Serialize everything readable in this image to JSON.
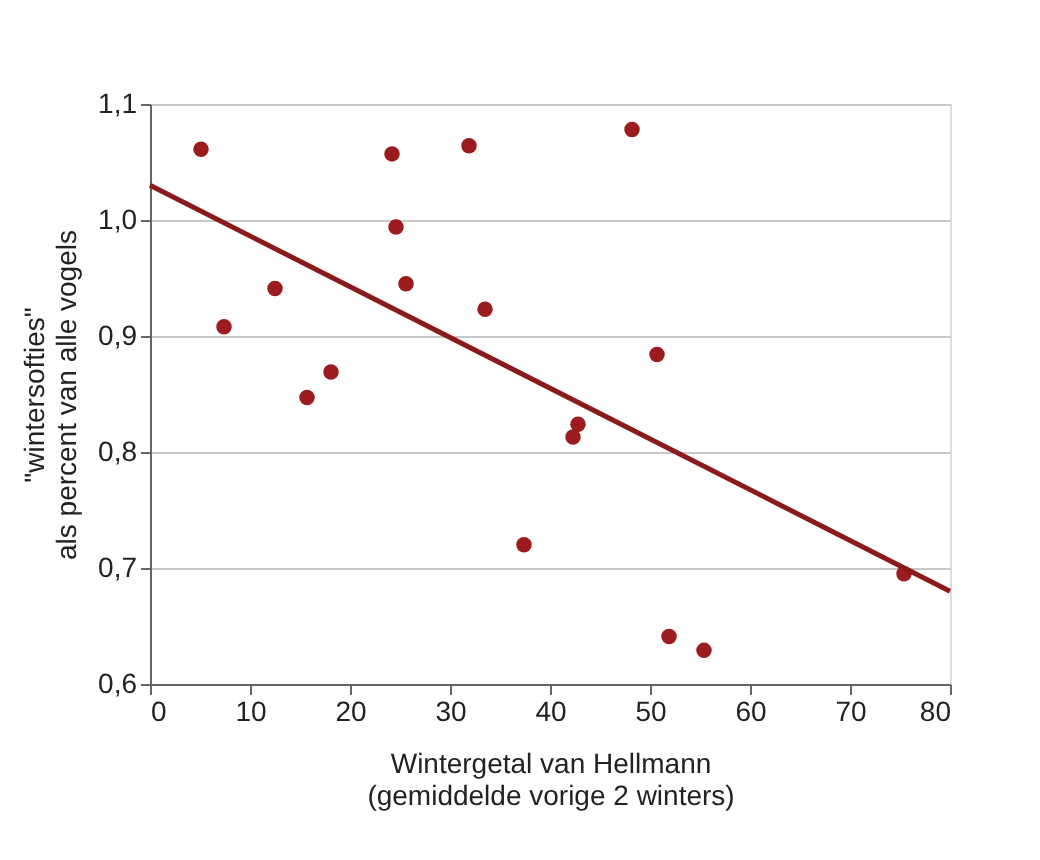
{
  "chart_data": {
    "type": "scatter",
    "xlabel": "Wintergetal van Hellmann\n(gemiddelde vorige 2 winters)",
    "ylabel": "\"wintersofties\"\nals percent van alle vogels",
    "xlim": [
      0,
      80
    ],
    "xticks": [
      0,
      10,
      20,
      30,
      40,
      50,
      60,
      70,
      80
    ],
    "ylim": [
      0.6,
      1.1
    ],
    "yticks": [
      {
        "value": 0.6,
        "label": "0,6"
      },
      {
        "value": 0.7,
        "label": "0,7"
      },
      {
        "value": 0.8,
        "label": "0,8"
      },
      {
        "value": 0.9,
        "label": "0,9"
      },
      {
        "value": 1.0,
        "label": "1,0"
      },
      {
        "value": 1.1,
        "label": "1,1"
      }
    ],
    "grid": "y",
    "series": [
      {
        "marker": "circle",
        "color": "#9b1b1e",
        "x": [
          5.1,
          7.4,
          12.5,
          15.7,
          18.1,
          24.2,
          24.6,
          25.6,
          31.9,
          33.5,
          37.4,
          48.2,
          50.7,
          42.8,
          42.3,
          75.4,
          51.9,
          55.4
        ],
        "values": [
          1.061,
          0.908,
          0.941,
          0.847,
          0.869,
          1.057,
          0.994,
          0.945,
          1.064,
          0.923,
          0.72,
          1.078,
          0.884,
          0.824,
          0.813,
          0.695,
          0.641,
          0.629
        ]
      },
      {
        "type": "line",
        "color": "#8b1a1a",
        "x": [
          0,
          80
        ],
        "values": [
          1.03,
          0.68
        ]
      }
    ]
  }
}
